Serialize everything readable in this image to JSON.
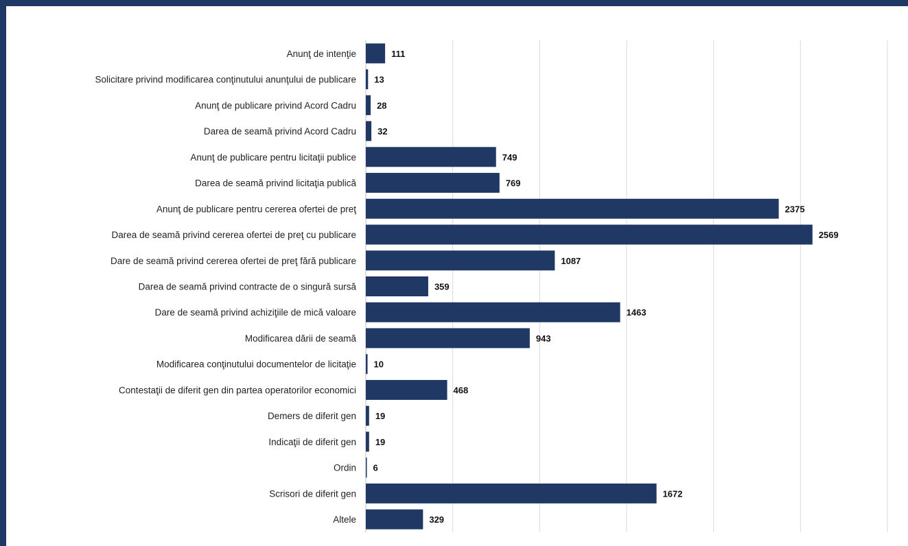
{
  "colors": {
    "frame": "#1f3864",
    "bar": "#203864",
    "grid": "#d9d9d9",
    "text": "#222222"
  },
  "chart_data": {
    "type": "bar",
    "orientation": "horizontal",
    "title": "",
    "xlabel": "",
    "ylabel": "",
    "grid": true,
    "legend": "none",
    "xlim": [
      0,
      3000
    ],
    "categories": [
      "Anunţ de intenţie",
      "Solicitare privind modificarea conţinutului anunţului de publicare",
      "Anunţ de publicare privind Acord Cadru",
      "Darea de seamă privind Acord Cadru",
      "Anunţ de publicare pentru licitaţii publice",
      "Darea de seamă privind licitaţia publică",
      "Anunţ de publicare pentru cererea ofertei de preţ",
      "Darea de seamă privind cererea ofertei de preţ cu publicare",
      "Dare de seamă privind cererea ofertei de preţ fără publicare",
      "Darea de seamă privind contracte de o singură sursă",
      "Dare de seamă privind achiziţiile de mică valoare",
      "Modificarea dării de seamă",
      "Modificarea conţinutului documentelor de licitaţie",
      "Contestaţii de diferit gen din partea operatorilor economici",
      "Demers de diferit gen",
      "Indicaţii de diferit gen",
      "Ordin",
      "Scrisori de diferit gen",
      "Altele"
    ],
    "values": [
      111,
      13,
      28,
      32,
      749,
      769,
      2375,
      2569,
      1087,
      359,
      1463,
      943,
      10,
      468,
      19,
      19,
      6,
      1672,
      329
    ]
  }
}
